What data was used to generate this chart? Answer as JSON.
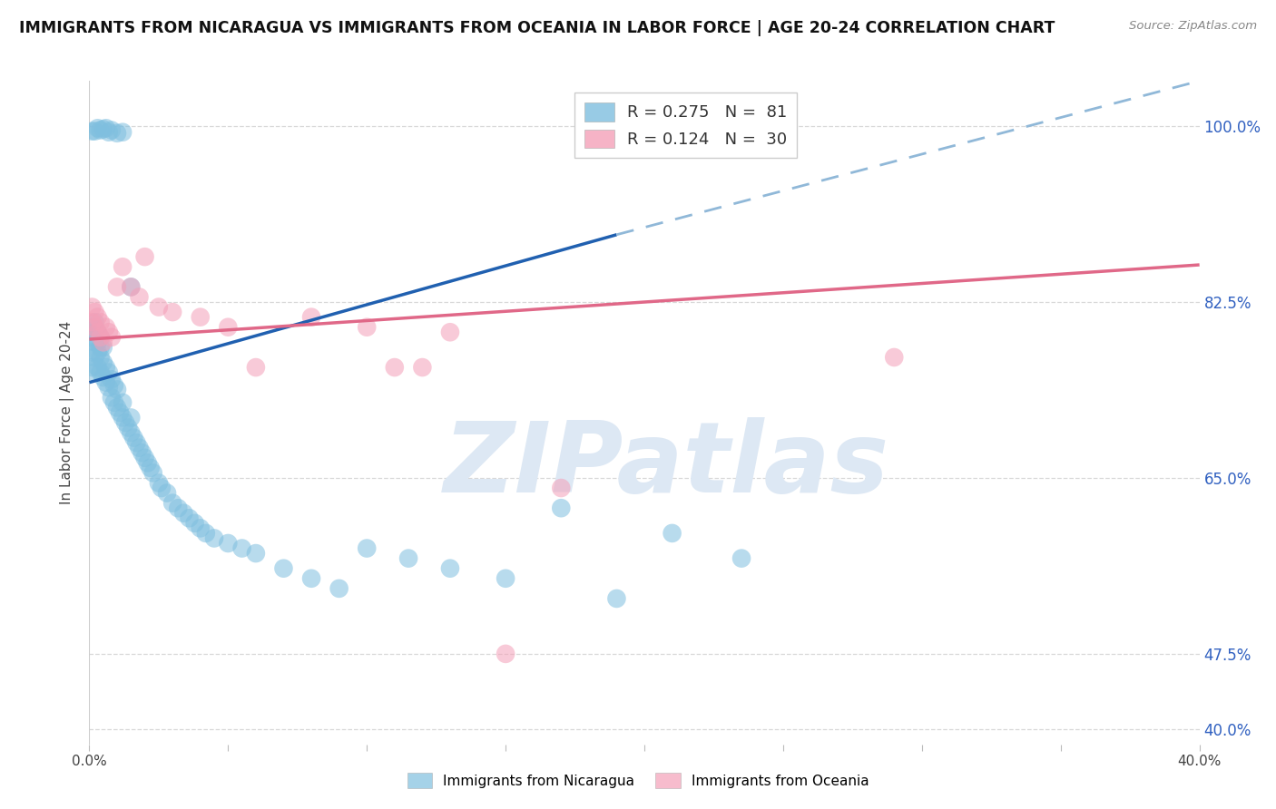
{
  "title": "IMMIGRANTS FROM NICARAGUA VS IMMIGRANTS FROM OCEANIA IN LABOR FORCE | AGE 20-24 CORRELATION CHART",
  "source": "Source: ZipAtlas.com",
  "ylabel": "In Labor Force | Age 20-24",
  "ytick_labels": [
    "100.0%",
    "82.5%",
    "65.0%",
    "47.5%",
    "40.0%"
  ],
  "ytick_values": [
    1.0,
    0.825,
    0.65,
    0.475,
    0.4
  ],
  "xmin": 0.0,
  "xmax": 0.4,
  "ymin": 0.385,
  "ymax": 1.045,
  "blue_R": 0.275,
  "blue_N": 81,
  "pink_R": 0.124,
  "pink_N": 30,
  "blue_color": "#7fbfdf",
  "pink_color": "#f4a0b8",
  "blue_line_color": "#2060b0",
  "pink_line_color": "#e06888",
  "dashed_line_color": "#90b8d8",
  "watermark_color": "#dde8f4",
  "title_color": "#111111",
  "right_label_color": "#3060c0",
  "grid_color": "#d8d8d8",
  "legend_blue_label": "Immigrants from Nicaragua",
  "legend_pink_label": "Immigrants from Oceania",
  "blue_trend_x0": 0.0,
  "blue_trend_y0": 0.745,
  "blue_trend_solid_x1": 0.19,
  "blue_trend_solid_y1": 0.892,
  "blue_trend_x1": 0.4,
  "blue_trend_y1": 1.045,
  "pink_trend_x0": 0.0,
  "pink_trend_y0": 0.788,
  "pink_trend_x1": 0.4,
  "pink_trend_y1": 0.862,
  "blue_scatter_x": [
    0.001,
    0.001,
    0.001,
    0.001,
    0.002,
    0.002,
    0.002,
    0.002,
    0.002,
    0.003,
    0.003,
    0.003,
    0.003,
    0.004,
    0.004,
    0.004,
    0.004,
    0.005,
    0.005,
    0.005,
    0.006,
    0.006,
    0.007,
    0.007,
    0.008,
    0.008,
    0.009,
    0.009,
    0.01,
    0.01,
    0.011,
    0.012,
    0.012,
    0.013,
    0.014,
    0.015,
    0.015,
    0.016,
    0.017,
    0.018,
    0.019,
    0.02,
    0.021,
    0.022,
    0.023,
    0.025,
    0.026,
    0.028,
    0.03,
    0.032,
    0.034,
    0.036,
    0.038,
    0.04,
    0.042,
    0.045,
    0.05,
    0.055,
    0.06,
    0.07,
    0.08,
    0.09,
    0.1,
    0.115,
    0.13,
    0.15,
    0.17,
    0.19,
    0.21,
    0.235,
    0.001,
    0.002,
    0.003,
    0.004,
    0.005,
    0.006,
    0.007,
    0.008,
    0.01,
    0.012,
    0.015
  ],
  "blue_scatter_y": [
    0.76,
    0.775,
    0.79,
    0.8,
    0.755,
    0.77,
    0.785,
    0.795,
    0.805,
    0.76,
    0.775,
    0.785,
    0.795,
    0.755,
    0.77,
    0.78,
    0.79,
    0.75,
    0.765,
    0.78,
    0.745,
    0.76,
    0.74,
    0.755,
    0.73,
    0.748,
    0.725,
    0.742,
    0.72,
    0.738,
    0.715,
    0.71,
    0.725,
    0.705,
    0.7,
    0.695,
    0.71,
    0.69,
    0.685,
    0.68,
    0.675,
    0.67,
    0.665,
    0.66,
    0.655,
    0.645,
    0.64,
    0.635,
    0.625,
    0.62,
    0.615,
    0.61,
    0.605,
    0.6,
    0.595,
    0.59,
    0.585,
    0.58,
    0.575,
    0.56,
    0.55,
    0.54,
    0.58,
    0.57,
    0.56,
    0.55,
    0.62,
    0.53,
    0.595,
    0.57,
    0.995,
    0.995,
    0.998,
    0.996,
    0.997,
    0.998,
    0.994,
    0.996,
    0.993,
    0.994,
    0.84
  ],
  "pink_scatter_x": [
    0.001,
    0.001,
    0.002,
    0.002,
    0.003,
    0.003,
    0.004,
    0.004,
    0.005,
    0.006,
    0.007,
    0.008,
    0.01,
    0.012,
    0.015,
    0.018,
    0.02,
    0.025,
    0.03,
    0.04,
    0.05,
    0.06,
    0.08,
    0.1,
    0.11,
    0.13,
    0.15,
    0.17,
    0.29,
    0.12
  ],
  "pink_scatter_y": [
    0.805,
    0.82,
    0.8,
    0.815,
    0.795,
    0.81,
    0.79,
    0.805,
    0.785,
    0.8,
    0.795,
    0.79,
    0.84,
    0.86,
    0.84,
    0.83,
    0.87,
    0.82,
    0.815,
    0.81,
    0.8,
    0.76,
    0.81,
    0.8,
    0.76,
    0.795,
    0.475,
    0.64,
    0.77,
    0.76
  ]
}
